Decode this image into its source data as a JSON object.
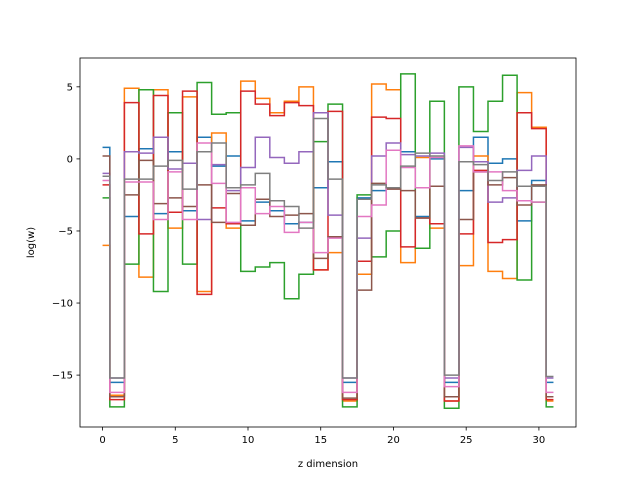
{
  "chart_data": {
    "type": "line",
    "step": "mid",
    "title": "",
    "xlabel": "z dimension",
    "ylabel": "log(w)",
    "xlim": [
      -1.55,
      32.55
    ],
    "ylim": [
      -18.6,
      7.0
    ],
    "xticks": [
      0,
      5,
      10,
      15,
      20,
      25,
      30
    ],
    "yticks": [
      -15,
      -10,
      -5,
      0,
      5
    ],
    "grid": false,
    "legend": "none",
    "x": [
      0,
      1,
      2,
      3,
      4,
      5,
      6,
      7,
      8,
      9,
      10,
      11,
      12,
      13,
      14,
      15,
      16,
      17,
      18,
      19,
      20,
      21,
      22,
      23,
      24,
      25,
      26,
      27,
      28,
      29,
      30,
      31
    ],
    "series": [
      {
        "color": "#1f77b4",
        "values": [
          0.8,
          -15.5,
          -4.0,
          0.7,
          -3.8,
          0.5,
          -3.6,
          1.5,
          -0.5,
          0.2,
          -4.3,
          -3.0,
          -3.6,
          -4.5,
          -4.4,
          -2.0,
          -0.2,
          -15.5,
          -2.7,
          -2.2,
          -2.0,
          0.5,
          -4.0,
          0.0,
          -15.5,
          -2.2,
          1.5,
          -0.3,
          0.0,
          -4.3,
          -1.5,
          -15.5
        ]
      },
      {
        "color": "#ff7f0e",
        "values": [
          -6.0,
          -16.4,
          4.9,
          -8.2,
          4.8,
          -4.8,
          4.3,
          -9.2,
          1.8,
          -4.8,
          5.4,
          4.2,
          3.2,
          4.0,
          5.0,
          -7.7,
          -6.5,
          -16.8,
          -8.0,
          5.2,
          4.8,
          -7.2,
          0.1,
          -4.8,
          -16.8,
          -7.4,
          0.2,
          -7.8,
          -8.3,
          4.6,
          2.2,
          -16.8
        ]
      },
      {
        "color": "#2ca02c",
        "values": [
          -2.7,
          -17.2,
          -7.3,
          4.8,
          -9.2,
          3.2,
          -7.3,
          5.3,
          3.1,
          3.2,
          -7.8,
          -7.5,
          -7.2,
          -9.7,
          -8.0,
          1.2,
          3.8,
          -17.2,
          -2.5,
          -6.8,
          -5.0,
          5.9,
          -6.2,
          4.0,
          -17.3,
          5.0,
          1.9,
          4.0,
          5.8,
          -8.4,
          -3.0,
          -17.2
        ]
      },
      {
        "color": "#d62728",
        "values": [
          -1.8,
          -16.7,
          3.9,
          -5.2,
          4.4,
          -3.7,
          4.7,
          -9.4,
          -3.4,
          -4.5,
          4.7,
          3.8,
          3.0,
          3.9,
          3.7,
          -7.7,
          3.3,
          -16.7,
          -7.1,
          2.9,
          2.8,
          -6.1,
          -4.1,
          -4.5,
          -16.8,
          -5.2,
          -0.8,
          -5.8,
          -5.6,
          3.2,
          2.1,
          -16.7
        ]
      },
      {
        "color": "#9467bd",
        "values": [
          -1.0,
          -15.2,
          0.5,
          0.4,
          1.5,
          -0.7,
          -0.3,
          -4.2,
          -0.4,
          -2.2,
          -0.6,
          1.5,
          0.1,
          -0.3,
          0.5,
          3.2,
          -3.9,
          -15.2,
          -5.5,
          0.2,
          1.1,
          0.3,
          0.2,
          0.4,
          -15.2,
          0.8,
          -0.2,
          -3.0,
          -2.7,
          -0.8,
          0.2,
          -15.2
        ]
      },
      {
        "color": "#8c564b",
        "values": [
          0.2,
          -16.5,
          -2.5,
          -0.1,
          -3.1,
          -2.7,
          -3.3,
          -1.8,
          -4.4,
          -2.4,
          -4.6,
          -2.8,
          -4.0,
          -3.9,
          -3.8,
          -6.9,
          -5.4,
          -16.6,
          -9.1,
          -1.7,
          -2.1,
          -2.2,
          -4.1,
          -1.9,
          -16.5,
          -4.2,
          -0.9,
          -1.8,
          -1.3,
          -3.2,
          -1.8,
          -16.5
        ]
      },
      {
        "color": "#e377c2",
        "values": [
          -1.5,
          -16.2,
          -1.6,
          -1.6,
          -4.2,
          -0.9,
          -4.2,
          1.1,
          -1.7,
          -4.4,
          -2.0,
          -3.8,
          -3.3,
          -5.1,
          -4.4,
          -6.5,
          -5.5,
          -16.2,
          -4.0,
          -3.2,
          0.6,
          -0.6,
          -2.0,
          0.1,
          -15.8,
          0.9,
          -0.9,
          -0.9,
          -2.2,
          -2.9,
          -3.0,
          -16.2
        ]
      },
      {
        "color": "#7f7f7f",
        "values": [
          -1.2,
          -15.2,
          -1.4,
          -1.4,
          -0.5,
          -0.1,
          -2.1,
          0.5,
          1.1,
          -2.0,
          -1.8,
          -1.0,
          -2.9,
          -3.3,
          -4.8,
          2.8,
          -1.4,
          -15.2,
          -2.8,
          -1.8,
          -2.0,
          -0.5,
          0.4,
          0.2,
          -15.0,
          -0.2,
          -0.4,
          -1.5,
          -0.9,
          -1.9,
          -1.9,
          -15.1
        ]
      }
    ]
  }
}
